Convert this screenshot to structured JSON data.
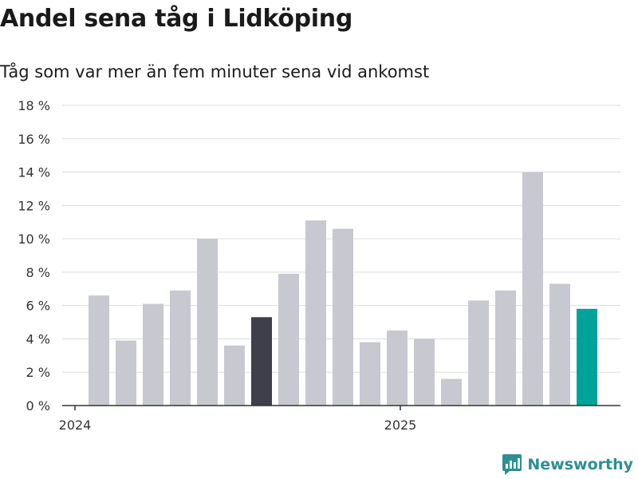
{
  "header": {
    "title": "Andel sena tåg i Lidköping",
    "subtitle": "Tåg som var mer än fem minuter sena vid ankomst"
  },
  "brand": {
    "name": "Newsworthy",
    "icon": "newsworthy-logo-icon",
    "color": "#2c8f92"
  },
  "colors": {
    "default_bar": "#c8c8d0",
    "highlight_bar": "#3f3f4c",
    "latest_bar": "#00a29a",
    "grid": "#dddddd",
    "axis": "#333333"
  },
  "chart_data": {
    "type": "bar",
    "title": "Andel sena tåg i Lidköping",
    "subtitle": "Tåg som var mer än fem minuter sena vid ankomst",
    "xlabel": "",
    "ylabel": "",
    "categories": [
      "2024-01",
      "2024-02",
      "2024-03",
      "2024-04",
      "2024-05",
      "2024-06",
      "2024-07",
      "2024-08",
      "2024-09",
      "2024-10",
      "2024-11",
      "2024-12",
      "2025-01",
      "2025-02",
      "2025-03",
      "2025-04",
      "2025-05",
      "2025-06",
      "2025-07"
    ],
    "values": [
      6.6,
      3.9,
      6.1,
      6.9,
      10.0,
      3.6,
      5.3,
      7.9,
      11.1,
      10.6,
      3.8,
      4.5,
      4.0,
      1.6,
      6.3,
      6.9,
      14.0,
      7.3,
      5.8
    ],
    "highlight": [
      "default",
      "default",
      "default",
      "default",
      "default",
      "default",
      "highlight",
      "default",
      "default",
      "default",
      "default",
      "default",
      "default",
      "default",
      "default",
      "default",
      "default",
      "default",
      "latest"
    ],
    "ylim": [
      0,
      18
    ],
    "yticks": [
      0,
      2,
      4,
      6,
      8,
      10,
      12,
      14,
      16,
      18
    ],
    "ytick_labels": [
      "0 %",
      "2 %",
      "4 %",
      "6 %",
      "8 %",
      "10 %",
      "12 %",
      "14 %",
      "16 %",
      "18 %"
    ],
    "xticks": [
      {
        "label": "2024",
        "category": "2024-01"
      },
      {
        "label": "2025",
        "category": "2025-01"
      }
    ],
    "grid": true,
    "legend": "none"
  }
}
